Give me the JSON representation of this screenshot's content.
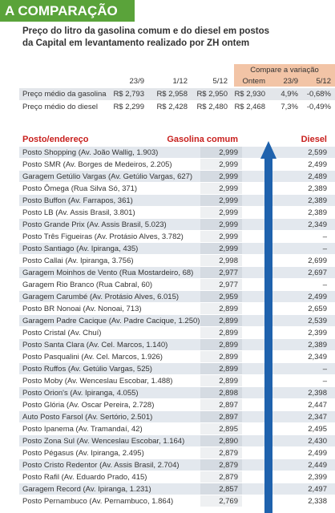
{
  "header": {
    "title": "A COMPARAÇÃO",
    "subtitle_lines": [
      "Preço do litro da gasolina comum e do diesel em postos",
      "da Capital em levantamento realizado por ZH ontem"
    ]
  },
  "summary": {
    "group_label": "Compare a variação",
    "columns": [
      "23/9",
      "1/12",
      "5/12",
      "Ontem",
      "23/9",
      "5/12"
    ],
    "rows": [
      [
        "Preço médio da gasolina",
        "R$ 2,793",
        "R$ 2,958",
        "R$ 2,950",
        "R$ 2,930",
        "4,9%",
        "-0,68%"
      ],
      [
        "Preço médio do diesel",
        "R$ 2,299",
        "R$ 2,428",
        "R$ 2,480",
        "R$ 2,468",
        "7,3%",
        "-0,49%"
      ]
    ]
  },
  "table": {
    "columns": [
      "Posto/endereço",
      "Gasolina comum",
      "Diesel"
    ],
    "rows": [
      [
        "Posto Shopping (Av. João Wallig, 1.903)",
        "2,999",
        "2,599"
      ],
      [
        "Posto SMR (Av. Borges de Medeiros, 2.205)",
        "2,999",
        "2,499"
      ],
      [
        "Garagem Getúlio Vargas (Av. Getúlio Vargas, 627)",
        "2,999",
        "2,489"
      ],
      [
        "Posto Ômega (Rua Silva Só, 371)",
        "2,999",
        "2,389"
      ],
      [
        "Posto Buffon (Av. Farrapos, 361)",
        "2,999",
        "2,389"
      ],
      [
        "Posto LB (Av. Assis Brasil, 3.801)",
        "2,999",
        "2,389"
      ],
      [
        "Posto Grande Prix (Av. Assis Brasil, 5.023)",
        "2,999",
        "2,349"
      ],
      [
        "Posto Três Figueiras (Av. Protásio Alves, 3.782)",
        "2,999",
        "–"
      ],
      [
        "Posto Santiago (Av. Ipiranga, 435)",
        "2,999",
        "–"
      ],
      [
        "Posto Callai (Av. Ipiranga, 3.756)",
        "2,998",
        "2,699"
      ],
      [
        "Garagem Moinhos de Vento (Rua Mostardeiro, 68)",
        "2,977",
        "2,697"
      ],
      [
        "Garagem Rio Branco (Rua Cabral, 60)",
        "2,977",
        "–"
      ],
      [
        "Garagem Carumbé (Av. Protásio Alves, 6.015)",
        "2,959",
        "2,499"
      ],
      [
        "Posto BR Nonoai (Av. Nonoai, 713)",
        "2,899",
        "2,659"
      ],
      [
        "Garagem Padre Cacique (Av. Padre Cacique, 1.250)",
        "2,899",
        "2,539"
      ],
      [
        "Posto Cristal (Av. Chuí)",
        "2,899",
        "2,399"
      ],
      [
        "Posto Santa Clara (Av. Cel. Marcos, 1.140)",
        "2,899",
        "2,389"
      ],
      [
        "Posto Pasqualini (Av. Cel. Marcos, 1.926)",
        "2,899",
        "2,349"
      ],
      [
        "Posto Ruffos (Av. Getúlio Vargas, 525)",
        "2,899",
        "–"
      ],
      [
        "Posto Moby (Av. Wenceslau Escobar, 1.488)",
        "2,899",
        "–"
      ],
      [
        "Posto Orion's (Av. Ipiranga, 4.055)",
        "2,898",
        "2,398"
      ],
      [
        "Posto Glória (Av. Oscar Pereira, 2.728)",
        "2,897",
        "2,447"
      ],
      [
        "Auto Posto Farsol (Av. Sertório, 2.501)",
        "2,897",
        "2,347"
      ],
      [
        "Posto Ipanema (Av. Tramandaí, 42)",
        "2,895",
        "2,495"
      ],
      [
        "Posto Zona Sul (Av. Wenceslau Escobar, 1.164)",
        "2,890",
        "2,430"
      ],
      [
        "Posto Pégasus (Av. Ipiranga, 2.495)",
        "2,879",
        "2,499"
      ],
      [
        "Posto Cristo Redentor (Av. Assis Brasil, 2.704)",
        "2,879",
        "2,449"
      ],
      [
        "Posto Rafil (Av. Eduardo Prado, 415)",
        "2,879",
        "2,399"
      ],
      [
        "Garagem Record (Av. Ipiranga, 1.231)",
        "2,857",
        "2,497"
      ],
      [
        "Posto Pernambuco (Av. Pernambuco, 1.864)",
        "2,769",
        "2,338"
      ]
    ]
  }
}
